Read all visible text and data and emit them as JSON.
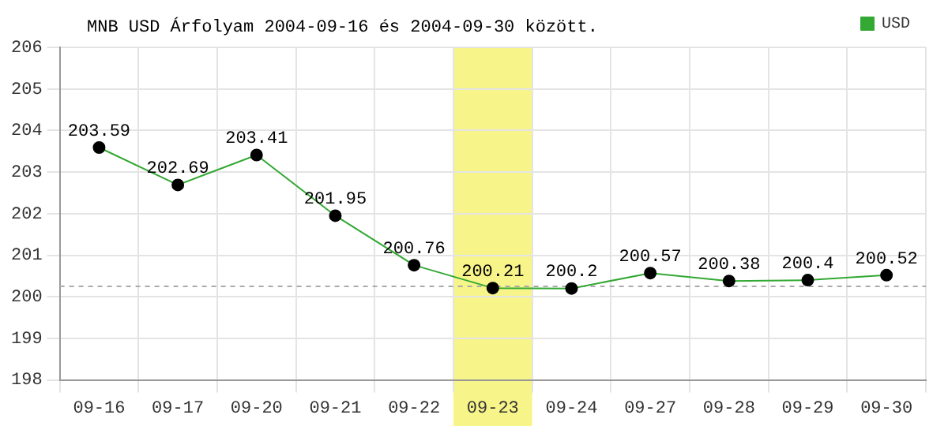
{
  "chart_data": {
    "type": "line",
    "title": "MNB USD Árfolyam 2004-09-16 és 2004-09-30 között.",
    "categories": [
      "09-16",
      "09-17",
      "09-20",
      "09-21",
      "09-22",
      "09-23",
      "09-24",
      "09-27",
      "09-28",
      "09-29",
      "09-30"
    ],
    "series": [
      {
        "name": "USD",
        "color": "#33a833",
        "values": [
          203.59,
          202.69,
          203.41,
          201.95,
          200.76,
          200.21,
          200.2,
          200.57,
          200.38,
          200.4,
          200.52
        ]
      }
    ],
    "ylim": [
      198,
      206
    ],
    "yticks": [
      198,
      199,
      200,
      201,
      202,
      203,
      204,
      205,
      206
    ],
    "grid": true,
    "legend": "top right",
    "marker": "circle",
    "data_labels": true,
    "ref_lines": [
      {
        "axis": "y",
        "value": 200.25,
        "color": "#aaaaaa",
        "line_style": "dashed"
      }
    ],
    "bands": [
      {
        "axis": "x",
        "from": "09-23",
        "to": "09-23",
        "color": "#f7f48a"
      }
    ]
  }
}
